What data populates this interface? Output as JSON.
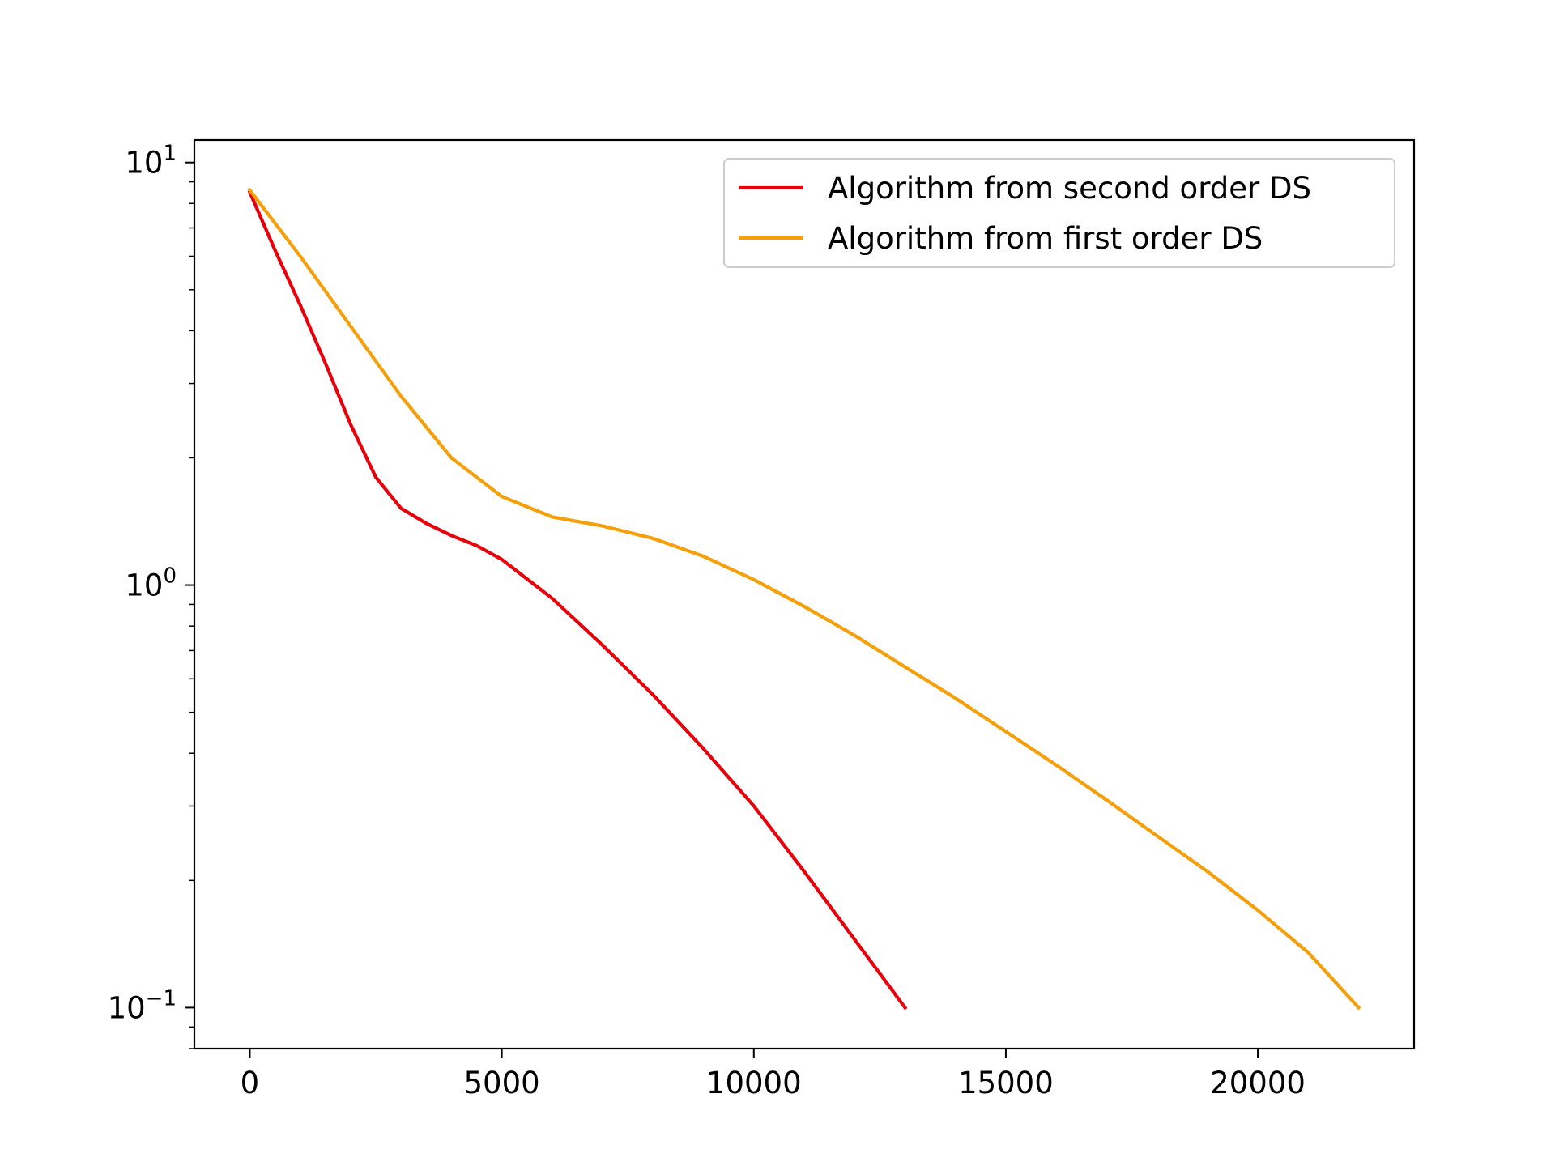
{
  "chart_data": {
    "type": "line",
    "title": "",
    "xlabel": "",
    "ylabel": "",
    "yscale": "log",
    "grid": false,
    "legend_position": "top-right",
    "xlim": [
      -1100,
      23100
    ],
    "ylim": [
      0.08,
      11.3
    ],
    "x_ticks": [
      {
        "value": 0,
        "label": "0"
      },
      {
        "value": 5000,
        "label": "5000"
      },
      {
        "value": 10000,
        "label": "10000"
      },
      {
        "value": 15000,
        "label": "15000"
      },
      {
        "value": 20000,
        "label": "20000"
      }
    ],
    "y_ticks": [
      {
        "value": 10,
        "base": "10",
        "exp": "1"
      },
      {
        "value": 1,
        "base": "10",
        "exp": "0"
      },
      {
        "value": 0.1,
        "base": "10",
        "exp": "−1"
      }
    ],
    "series": [
      {
        "name": "Algorithm from second order DS",
        "color": "#e8000b",
        "x": [
          0,
          500,
          1000,
          1500,
          2000,
          2500,
          3000,
          3500,
          4000,
          4500,
          5000,
          6000,
          7000,
          8000,
          9000,
          10000,
          11000,
          12000,
          13000
        ],
        "y": [
          8.5,
          6.2,
          4.6,
          3.35,
          2.4,
          1.8,
          1.52,
          1.4,
          1.31,
          1.24,
          1.15,
          0.93,
          0.72,
          0.55,
          0.41,
          0.3,
          0.21,
          0.145,
          0.1
        ]
      },
      {
        "name": "Algorithm from first order DS",
        "color": "#f5a00a",
        "x": [
          0,
          1000,
          2000,
          3000,
          4000,
          5000,
          6000,
          7000,
          8000,
          9000,
          10000,
          11000,
          12000,
          13000,
          14000,
          15000,
          16000,
          17000,
          18000,
          19000,
          20000,
          21000,
          22000
        ],
        "y": [
          8.6,
          6.0,
          4.1,
          2.8,
          2.0,
          1.62,
          1.45,
          1.38,
          1.29,
          1.17,
          1.03,
          0.89,
          0.76,
          0.64,
          0.54,
          0.45,
          0.375,
          0.31,
          0.255,
          0.21,
          0.17,
          0.135,
          0.1
        ]
      }
    ]
  }
}
